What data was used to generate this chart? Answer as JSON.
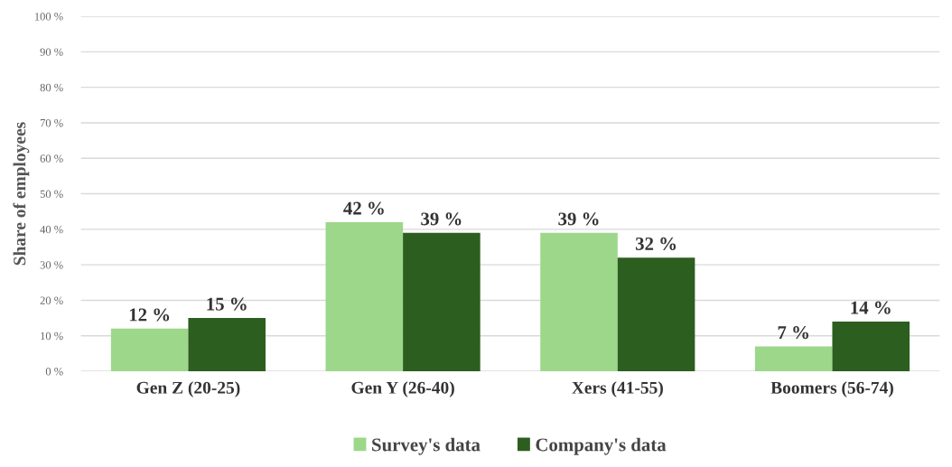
{
  "chart_data": {
    "type": "bar",
    "ylabel": "Share of employees",
    "categories": [
      "Gen Z (20-25)",
      "Gen Y (26-40)",
      "Xers (41-55)",
      "Boomers (56-74)"
    ],
    "series": [
      {
        "name": "Survey's data",
        "color": "#9cd78a",
        "values": [
          12,
          42,
          39,
          7
        ],
        "value_labels": [
          "12 %",
          "42 %",
          "39 %",
          "7 %"
        ]
      },
      {
        "name": "Company's data",
        "color": "#2c5e1f",
        "values": [
          15,
          39,
          32,
          14
        ],
        "value_labels": [
          "15 %",
          "39 %",
          "32 %",
          "14 %"
        ]
      }
    ],
    "ylim": [
      0,
      100
    ],
    "yticks": [
      {
        "value": 0,
        "label": "0 %"
      },
      {
        "value": 10,
        "label": "10 %"
      },
      {
        "value": 20,
        "label": "20 %"
      },
      {
        "value": 30,
        "label": "30 %"
      },
      {
        "value": 40,
        "label": "40 %"
      },
      {
        "value": 50,
        "label": "50 %"
      },
      {
        "value": 60,
        "label": "60 %"
      },
      {
        "value": 70,
        "label": "70 %"
      },
      {
        "value": 80,
        "label": "80 %"
      },
      {
        "value": 90,
        "label": "90 %"
      },
      {
        "value": 100,
        "label": "100 %"
      }
    ],
    "grid": "y",
    "legend": "bottom"
  }
}
